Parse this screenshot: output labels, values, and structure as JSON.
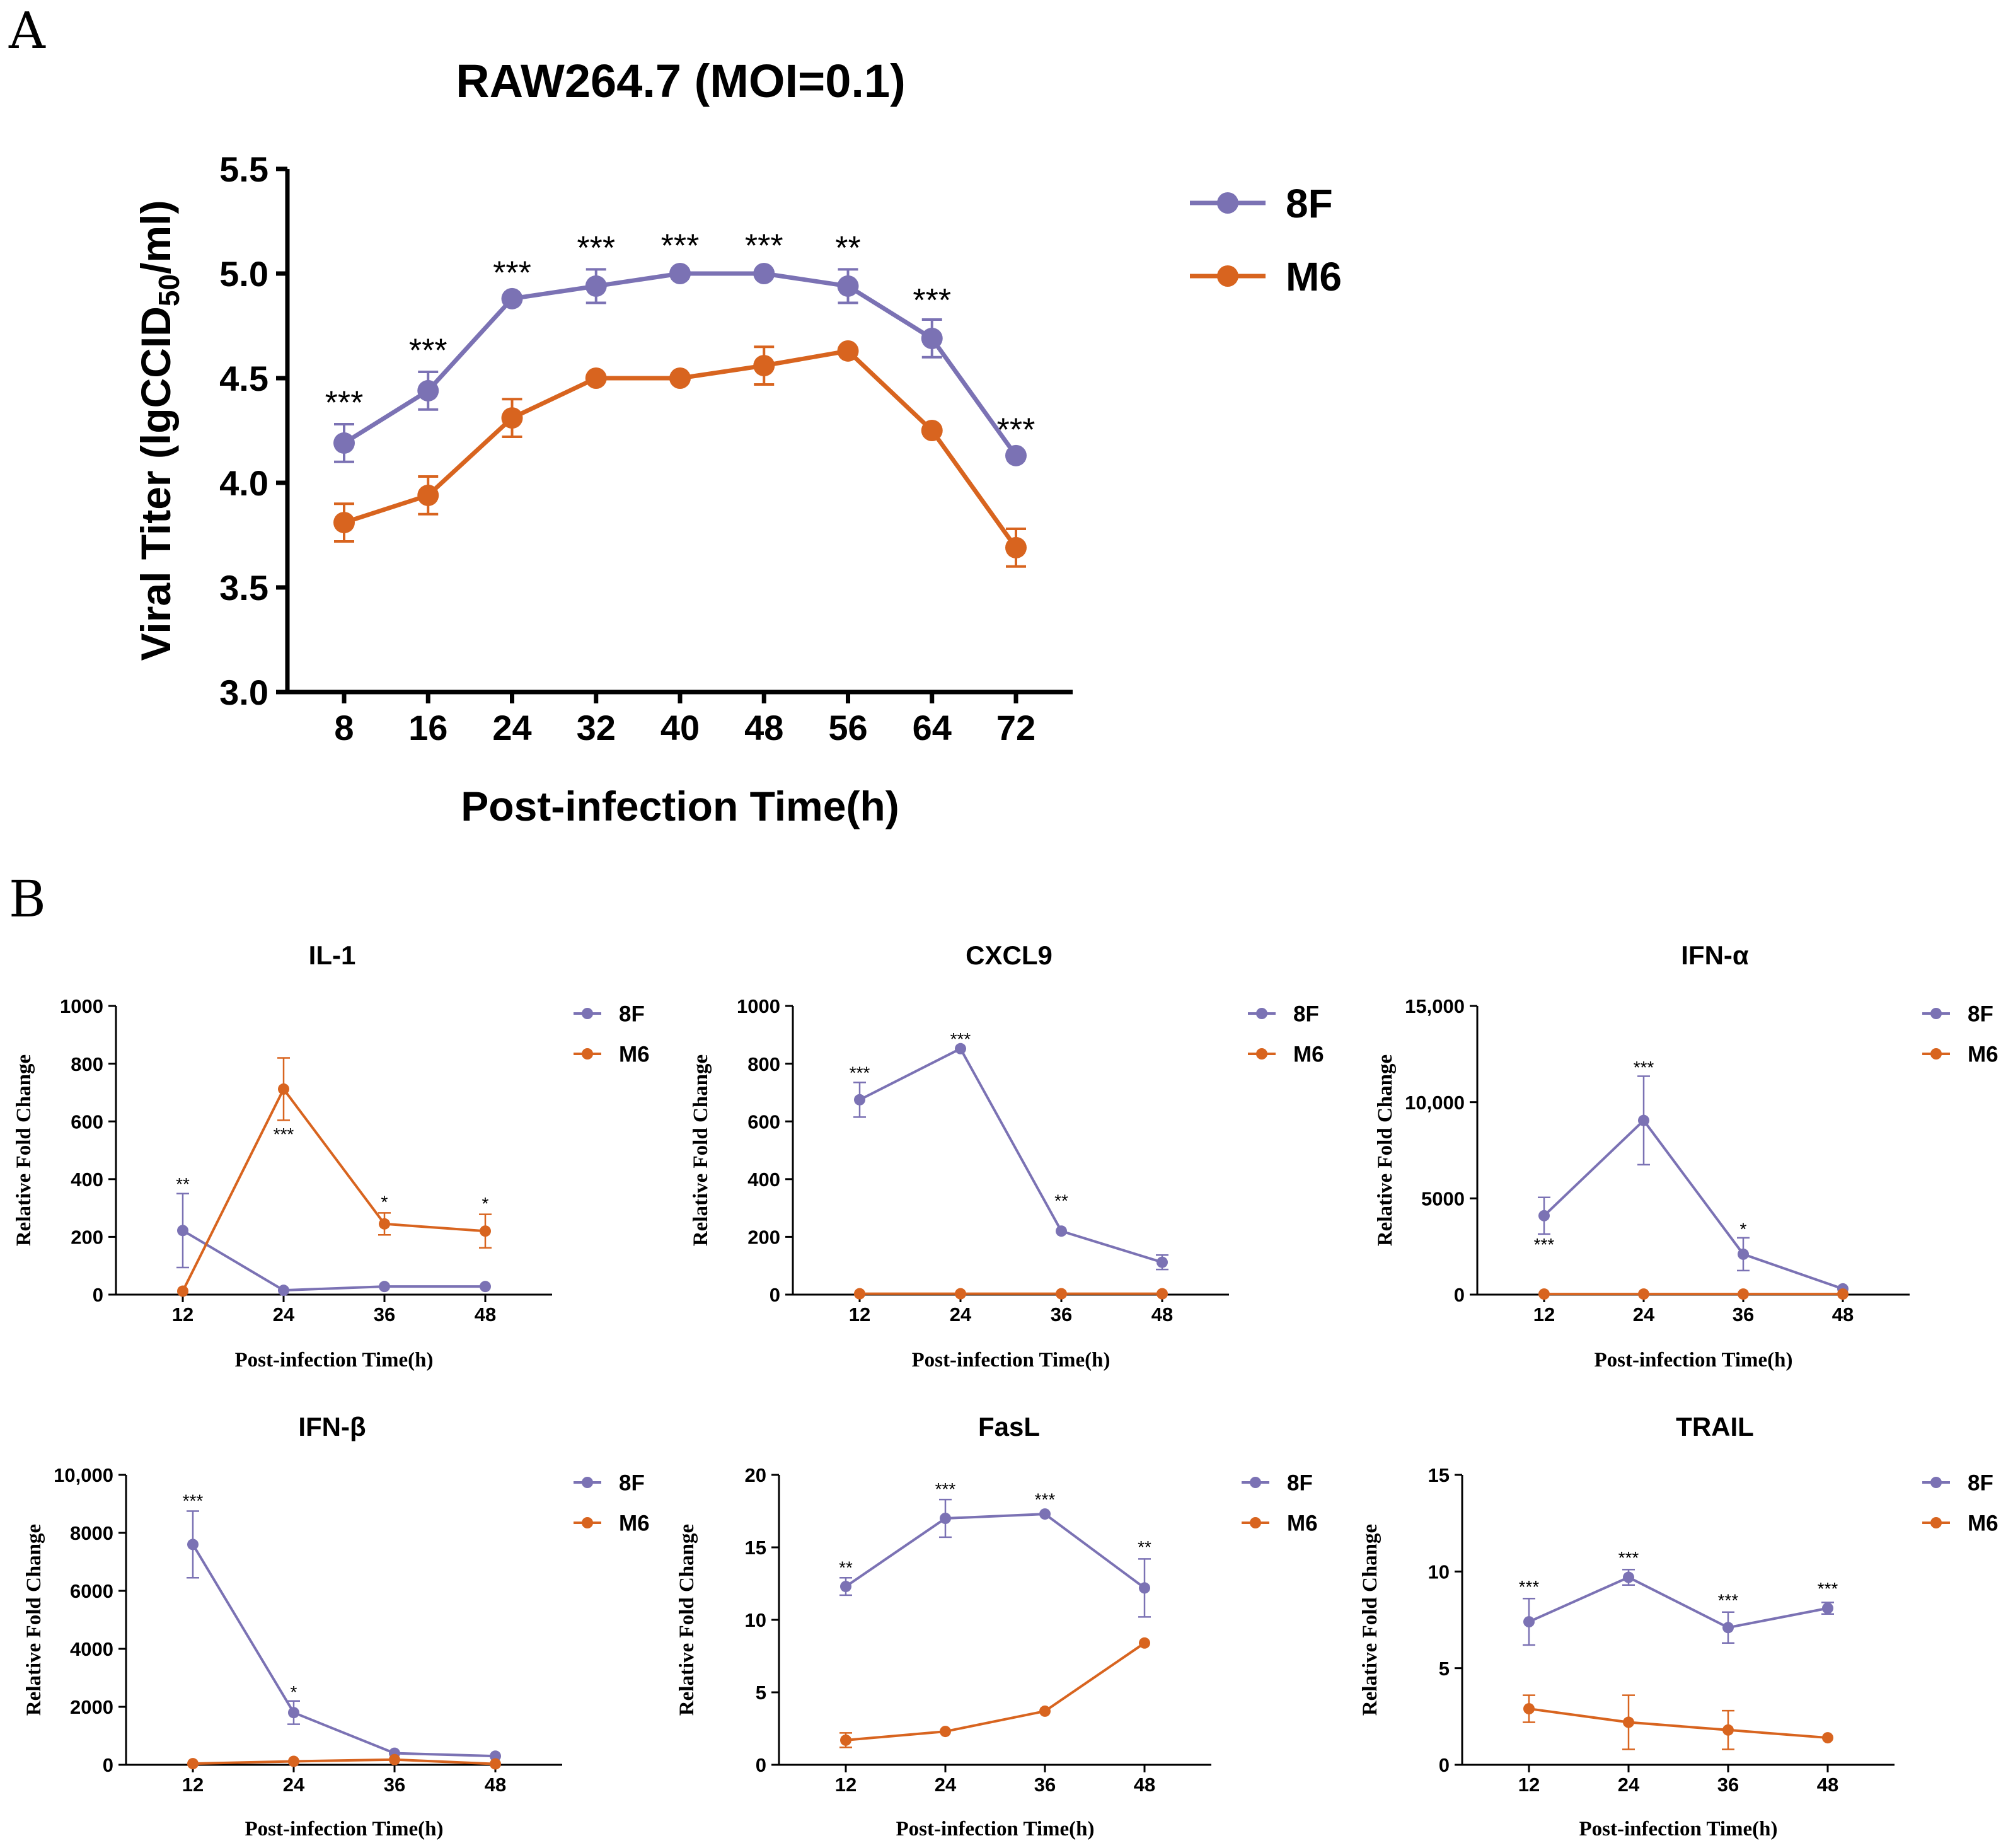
{
  "colors": {
    "s8F": "#7b72b4",
    "sM6": "#d8641f"
  },
  "panel_labels": {
    "a": "A",
    "b": "B"
  },
  "chart_data": [
    {
      "type": "line",
      "title": "RAW264.7 (MOI=0.1)",
      "xlabel": "Post-infection Time(h)",
      "ylabel_pre": "Viral Titer (lgCCID",
      "ylabel_sub": "50",
      "ylabel_post": "/ml)",
      "categories": [
        "8",
        "16",
        "24",
        "32",
        "40",
        "48",
        "56",
        "64",
        "72"
      ],
      "yticks": [
        "3.0",
        "3.5",
        "4.0",
        "4.5",
        "5.0",
        "5.5"
      ],
      "ylim": [
        3.0,
        5.5
      ],
      "series": [
        {
          "name": "8F",
          "color_key": "s8F",
          "values": [
            4.19,
            4.44,
            4.88,
            4.94,
            5.0,
            5.0,
            4.94,
            4.69,
            4.13
          ],
          "errors": [
            0.09,
            0.09,
            0.0,
            0.08,
            0.0,
            0.0,
            0.08,
            0.09,
            0.0
          ]
        },
        {
          "name": "M6",
          "color_key": "sM6",
          "values": [
            3.81,
            3.94,
            4.31,
            4.5,
            4.5,
            4.56,
            4.63,
            4.25,
            3.69
          ],
          "errors": [
            0.09,
            0.09,
            0.09,
            0.0,
            0.0,
            0.09,
            0.0,
            0.0,
            0.09
          ]
        }
      ],
      "annotations": [
        {
          "index": 0,
          "text": "***",
          "value": 4.33
        },
        {
          "index": 1,
          "text": "***",
          "value": 4.58
        },
        {
          "index": 2,
          "text": "***",
          "value": 4.95
        },
        {
          "index": 3,
          "text": "***",
          "value": 5.07
        },
        {
          "index": 4,
          "text": "***",
          "value": 5.08
        },
        {
          "index": 5,
          "text": "***",
          "value": 5.08
        },
        {
          "index": 6,
          "text": "**",
          "value": 5.07
        },
        {
          "index": 7,
          "text": "***",
          "value": 4.82
        },
        {
          "index": 8,
          "text": "***",
          "value": 4.2
        }
      ]
    },
    {
      "type": "line",
      "title": "IL-1",
      "xlabel": "Post-infection Time(h)",
      "ylabel": "Relative Fold Change",
      "categories": [
        "12",
        "24",
        "36",
        "48"
      ],
      "yticks": [
        "0",
        "200",
        "400",
        "600",
        "800",
        "1000"
      ],
      "ylim": [
        0,
        1000
      ],
      "series": [
        {
          "name": "8F",
          "color_key": "s8F",
          "values": [
            222,
            15,
            28,
            28
          ],
          "errors": [
            128,
            0,
            0,
            0
          ]
        },
        {
          "name": "M6",
          "color_key": "sM6",
          "values": [
            12,
            712,
            245,
            220
          ],
          "errors": [
            0,
            108,
            38,
            58
          ]
        }
      ],
      "annotations": [
        {
          "index": 0,
          "text": "**",
          "value": 362
        },
        {
          "index": 1,
          "text": "***",
          "value": 535
        },
        {
          "index": 2,
          "text": "*",
          "value": 300
        },
        {
          "index": 3,
          "text": "*",
          "value": 295
        }
      ]
    },
    {
      "type": "line",
      "title": "CXCL9",
      "xlabel": "Post-infection Time(h)",
      "ylabel": "Relative Fold Change",
      "categories": [
        "12",
        "24",
        "36",
        "48"
      ],
      "yticks": [
        "0",
        "200",
        "400",
        "600",
        "800",
        "1000"
      ],
      "ylim": [
        0,
        1000
      ],
      "series": [
        {
          "name": "8F",
          "color_key": "s8F",
          "values": [
            675,
            852,
            220,
            112
          ],
          "errors": [
            60,
            0,
            0,
            25
          ]
        },
        {
          "name": "M6",
          "color_key": "sM6",
          "values": [
            3,
            3,
            3,
            3
          ],
          "errors": [
            0,
            0,
            0,
            0
          ]
        }
      ],
      "annotations": [
        {
          "index": 0,
          "text": "***",
          "value": 748
        },
        {
          "index": 1,
          "text": "***",
          "value": 865
        },
        {
          "index": 2,
          "text": "**",
          "value": 305
        }
      ]
    },
    {
      "type": "line",
      "title": "IFN-α",
      "xlabel": "Post-infection Time(h)",
      "ylabel": "Relative Fold Change",
      "categories": [
        "12",
        "24",
        "36",
        "48"
      ],
      "yticks": [
        "0",
        "5000",
        "10,000",
        "15,000"
      ],
      "ylim": [
        0,
        15000
      ],
      "series": [
        {
          "name": "8F",
          "color_key": "s8F",
          "values": [
            4100,
            9050,
            2100,
            300
          ],
          "errors": [
            950,
            2300,
            850,
            0
          ]
        },
        {
          "name": "M6",
          "color_key": "sM6",
          "values": [
            30,
            30,
            30,
            30
          ],
          "errors": [
            0,
            0,
            0,
            0
          ]
        }
      ],
      "annotations": [
        {
          "index": 0,
          "text": "***",
          "value": 2300
        },
        {
          "index": 1,
          "text": "***",
          "value": 11500
        },
        {
          "index": 2,
          "text": "*",
          "value": 3100
        }
      ]
    },
    {
      "type": "line",
      "title": "IFN-β",
      "xlabel": "Post-infection Time(h)",
      "ylabel": "Relative Fold Change",
      "categories": [
        "12",
        "24",
        "36",
        "48"
      ],
      "yticks": [
        "0",
        "2000",
        "4000",
        "6000",
        "8000",
        "10,000"
      ],
      "ylim": [
        0,
        10000
      ],
      "series": [
        {
          "name": "8F",
          "color_key": "s8F",
          "values": [
            7600,
            1800,
            400,
            300
          ],
          "errors": [
            1150,
            400,
            0,
            0
          ]
        },
        {
          "name": "M6",
          "color_key": "sM6",
          "values": [
            40,
            120,
            180,
            30
          ],
          "errors": [
            0,
            0,
            0,
            0
          ]
        }
      ],
      "annotations": [
        {
          "index": 0,
          "text": "***",
          "value": 8900
        },
        {
          "index": 1,
          "text": "*",
          "value": 2300
        }
      ]
    },
    {
      "type": "line",
      "title": "FasL",
      "xlabel": "Post-infection Time(h)",
      "ylabel": "Relative Fold Change",
      "categories": [
        "12",
        "24",
        "36",
        "48"
      ],
      "yticks": [
        "0",
        "5",
        "10",
        "15",
        "20"
      ],
      "ylim": [
        0,
        20
      ],
      "series": [
        {
          "name": "8F",
          "color_key": "s8F",
          "values": [
            12.3,
            17.0,
            17.3,
            12.2
          ],
          "errors": [
            0.6,
            1.3,
            0.0,
            2.0
          ]
        },
        {
          "name": "M6",
          "color_key": "sM6",
          "values": [
            1.7,
            2.3,
            3.7,
            8.4
          ],
          "errors": [
            0.5,
            0.0,
            0.0,
            0.0
          ]
        }
      ],
      "annotations": [
        {
          "index": 0,
          "text": "**",
          "value": 13.2
        },
        {
          "index": 1,
          "text": "***",
          "value": 18.6
        },
        {
          "index": 2,
          "text": "***",
          "value": 17.9
        },
        {
          "index": 3,
          "text": "**",
          "value": 14.6
        }
      ]
    },
    {
      "type": "line",
      "title": "TRAIL",
      "xlabel": "Post-infection Time(h)",
      "ylabel": "Relative Fold Change",
      "categories": [
        "12",
        "24",
        "36",
        "48"
      ],
      "yticks": [
        "0",
        "5",
        "10",
        "15"
      ],
      "ylim": [
        0,
        15
      ],
      "series": [
        {
          "name": "8F",
          "color_key": "s8F",
          "values": [
            7.4,
            9.7,
            7.1,
            8.1
          ],
          "errors": [
            1.2,
            0.4,
            0.8,
            0.3
          ]
        },
        {
          "name": "M6",
          "color_key": "sM6",
          "values": [
            2.9,
            2.2,
            1.8,
            1.4
          ],
          "errors": [
            0.7,
            1.4,
            1.0,
            0.0
          ]
        }
      ],
      "annotations": [
        {
          "index": 0,
          "text": "***",
          "value": 8.9
        },
        {
          "index": 1,
          "text": "***",
          "value": 10.4
        },
        {
          "index": 2,
          "text": "***",
          "value": 8.2
        },
        {
          "index": 3,
          "text": "***",
          "value": 8.8
        }
      ]
    }
  ]
}
